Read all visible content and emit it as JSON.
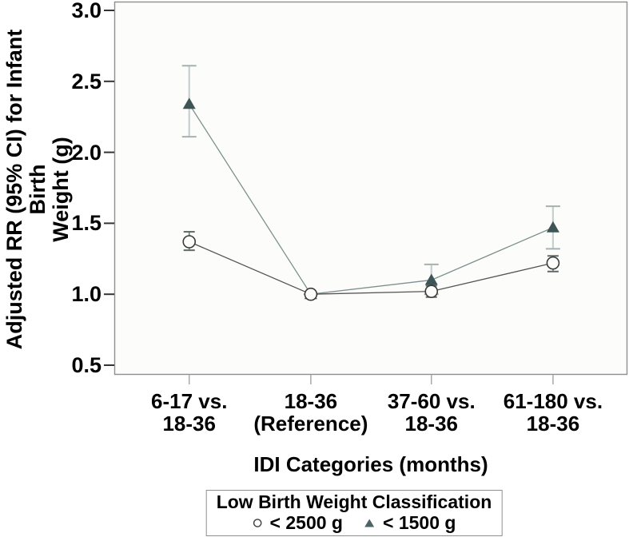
{
  "figure": {
    "y_axis": {
      "title_line1": "Adjusted RR (95% CI) for Infant Birth",
      "title_line2": "Weight (g)",
      "tick_labels": [
        "0.5",
        "1.0",
        "1.5",
        "2.0",
        "2.5",
        "3.0"
      ]
    },
    "x_axis": {
      "title": "IDI Categories (months)",
      "categories": [
        {
          "line1": "6-17 vs.",
          "line2": "18-36"
        },
        {
          "line1": "18-36",
          "line2": "(Reference)"
        },
        {
          "line1": "37-60 vs.",
          "line2": "18-36"
        },
        {
          "line1": "61-180 vs.",
          "line2": "18-36"
        }
      ]
    },
    "legend": {
      "title": "Low Birth Weight Classification",
      "items": [
        {
          "marker": "open-circle-icon",
          "label": "< 2500 g"
        },
        {
          "marker": "filled-triangle-icon",
          "label": "< 1500 g"
        }
      ]
    }
  },
  "chart_data": {
    "type": "line",
    "title": "",
    "xlabel": "IDI Categories (months)",
    "ylabel": "Adjusted RR (95% CI) for Infant Birth Weight (g)",
    "categories": [
      "6-17 vs. 18-36",
      "18-36 (Reference)",
      "37-60 vs. 18-36",
      "61-180 vs. 18-36"
    ],
    "ylim": [
      0.5,
      3.0
    ],
    "yticks": [
      0.5,
      1.0,
      1.5,
      2.0,
      2.5,
      3.0
    ],
    "grid": false,
    "error_bars": true,
    "legend_title": "Low Birth Weight Classification",
    "legend_position": "bottom",
    "series": [
      {
        "name": "< 2500 g",
        "marker": "open-circle",
        "values": [
          1.37,
          1.0,
          1.02,
          1.22
        ],
        "ci_low": [
          1.31,
          1.0,
          0.98,
          1.16
        ],
        "ci_high": [
          1.44,
          1.0,
          1.06,
          1.27
        ]
      },
      {
        "name": "< 1500 g",
        "marker": "filled-triangle",
        "values": [
          2.34,
          1.0,
          1.1,
          1.47
        ],
        "ci_low": [
          2.11,
          1.0,
          1.0,
          1.32
        ],
        "ci_high": [
          2.61,
          1.0,
          1.21,
          1.62
        ]
      }
    ]
  },
  "colors": {
    "plot_background": "#fcfcfb",
    "plot_border": "#8f8f8f",
    "y_tick": "#333333",
    "x_tick": "#a9a9a9",
    "circle_marker_stroke": "#3a3a3a",
    "circle_series_line": "#545454",
    "circle_error_bar": "#6f7b7b",
    "circle_error_cap": "#5f6a6a",
    "triangle_marker_fill": "#3e5456",
    "triangle_series_line": "#7d9090",
    "triangle_error_bar": "#c6d0d0",
    "triangle_error_cap": "#a4b2b2",
    "legend_triangle_fill": "#4e6366",
    "legend_circle_stroke": "#3c3c3c"
  }
}
